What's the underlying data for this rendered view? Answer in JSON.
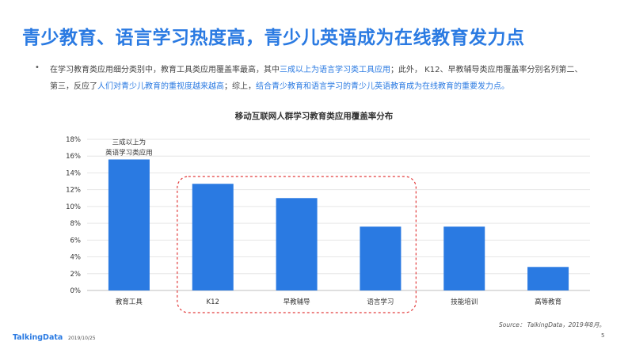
{
  "page": {
    "title": "青少教育、语言学习热度高，青少儿英语成为在线教育发力点",
    "bullet": "•",
    "desc": [
      {
        "text": "在学习教育类应用细分类别中，教育工具类应用覆盖率最高，其中",
        "highlight": false
      },
      {
        "text": "三成以上为语言学习类工具应用",
        "highlight": true
      },
      {
        "text": "；此外， K12、早教辅导类应用覆盖率分别名列第二、第三，反应了",
        "highlight": false
      },
      {
        "text": "人们对青少儿教育的重视度越来越高",
        "highlight": true
      },
      {
        "text": "；综上，",
        "highlight": false
      },
      {
        "text": "结合青少教育和语言学习的青少儿英语教育成为在线教育的重要发力点。",
        "highlight": true
      }
    ],
    "source": "Source： TalkingData，2019年8月。",
    "brand": "TalkingData",
    "date": "2019/10/25",
    "page_number": "5",
    "colors": {
      "accent": "#2a7ae2",
      "bar": "#2a7ae2",
      "highlight_box": "#e23b3b"
    }
  },
  "chart_data": {
    "type": "bar",
    "title": "移动互联网人群学习教育类应用覆盖率分布",
    "categories": [
      "教育工具",
      "K12",
      "早教辅导",
      "语言学习",
      "技能培训",
      "高等教育"
    ],
    "values": [
      15.6,
      12.7,
      11.0,
      7.6,
      7.6,
      2.8
    ],
    "ylim": [
      0,
      18
    ],
    "yticks": [
      "0%",
      "2%",
      "4%",
      "6%",
      "8%",
      "10%",
      "12%",
      "14%",
      "16%",
      "18%"
    ],
    "tick_step": 2,
    "grid": true,
    "annotation": {
      "category": "教育工具",
      "lines": [
        "三成以上为",
        "英语学习类应用"
      ]
    },
    "highlight_box_categories": [
      "K12",
      "早教辅导",
      "语言学习"
    ]
  }
}
